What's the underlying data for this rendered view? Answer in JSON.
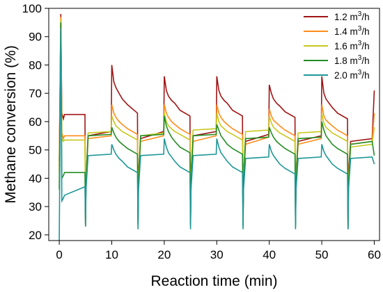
{
  "chart_data": {
    "type": "line",
    "xlabel": "Reaction time (min)",
    "ylabel": "Methane conversion (%)",
    "xlim": [
      -2,
      61
    ],
    "ylim": [
      18,
      100
    ],
    "xticks": [
      0,
      10,
      20,
      30,
      40,
      50,
      60
    ],
    "yticks": [
      20,
      30,
      40,
      50,
      60,
      70,
      80,
      90,
      100
    ],
    "grid": false,
    "legend_position": "top-right",
    "series": [
      {
        "name": "1.2 m³/h",
        "name_base": "1.2 m",
        "name_sup": "3",
        "name_tail": "/h",
        "color": "#a01414",
        "x": [
          0,
          0.3,
          0.5,
          0.8,
          1,
          4.9,
          5,
          5.1,
          5.5,
          9.9,
          10,
          10.4,
          10.8,
          11.4,
          12,
          13,
          14.9,
          15,
          15.1,
          15.5,
          19.9,
          20,
          20.4,
          20.8,
          21.4,
          22,
          23,
          24.9,
          25,
          25.1,
          25.5,
          29.9,
          30,
          30.4,
          30.8,
          31.4,
          32,
          33,
          34.9,
          35,
          35.1,
          35.5,
          39.9,
          40,
          40.4,
          40.8,
          41.4,
          42,
          43,
          44.9,
          45,
          45.1,
          45.5,
          49.9,
          50,
          50.4,
          50.8,
          51.4,
          52,
          53,
          54.9,
          55,
          55.1,
          55.5,
          59.6,
          60
        ],
        "y": [
          46,
          98,
          63,
          61,
          62.5,
          62.5,
          23,
          40,
          55,
          56.5,
          80,
          74,
          72,
          70,
          68,
          66,
          63,
          24,
          42,
          54,
          56.5,
          76,
          71,
          69,
          67.5,
          66.5,
          64,
          62,
          24,
          42,
          55,
          56.5,
          76,
          71,
          69,
          67.5,
          66.5,
          64,
          62,
          24,
          42,
          53,
          55.5,
          73,
          70,
          68,
          66.5,
          65.5,
          63.5,
          61.5,
          24,
          42,
          53,
          55,
          76,
          70,
          68,
          66.5,
          65,
          63,
          61,
          23,
          42,
          53,
          54,
          71
        ]
      },
      {
        "name": "1.4 m³/h",
        "name_base": "1.4 m",
        "name_sup": "3",
        "name_tail": "/h",
        "color": "#ff8c1a",
        "x": [
          0,
          0.3,
          0.5,
          0.8,
          1,
          4.9,
          5,
          5.1,
          5.5,
          9.9,
          10,
          10.4,
          10.8,
          11.4,
          12,
          13,
          14.9,
          15,
          15.1,
          15.5,
          19.9,
          20,
          20.4,
          20.8,
          21.4,
          22,
          23,
          24.9,
          25,
          25.1,
          25.5,
          29.9,
          30,
          30.4,
          30.8,
          31.4,
          32,
          33,
          34.9,
          35,
          35.1,
          35.5,
          39.9,
          40,
          40.4,
          40.8,
          41.4,
          42,
          43,
          44.9,
          45,
          45.1,
          45.5,
          49.9,
          50,
          50.4,
          50.8,
          51.4,
          52,
          53,
          54.9,
          55,
          55.1,
          55.5,
          59.6,
          60
        ],
        "y": [
          44,
          97,
          56,
          54,
          55,
          55,
          23,
          40,
          54,
          55,
          66,
          63,
          61.5,
          60,
          59,
          57.5,
          55.5,
          24,
          40,
          53,
          55,
          66,
          63,
          61.5,
          60,
          59,
          57.5,
          55.5,
          24,
          40,
          53,
          55,
          66,
          63,
          61.5,
          60,
          59,
          57.5,
          55.5,
          24,
          40,
          52,
          54.5,
          64.5,
          62,
          60.5,
          59.5,
          58.5,
          57,
          55,
          24,
          40,
          52,
          54,
          66,
          62,
          60.5,
          59.5,
          58.5,
          57,
          55,
          23,
          40,
          52,
          53,
          63
        ]
      },
      {
        "name": "1.6 m³/h",
        "name_base": "1.6 m",
        "name_sup": "3",
        "name_tail": "/h",
        "color": "#c8c81e",
        "x": [
          0,
          0.3,
          0.5,
          0.8,
          1,
          4.9,
          5,
          5.1,
          5.5,
          9.9,
          10,
          10.4,
          10.8,
          11.4,
          12,
          13,
          14.9,
          15,
          15.1,
          15.5,
          19.9,
          20,
          20.4,
          20.8,
          21.4,
          22,
          23,
          24.9,
          25,
          25.1,
          25.5,
          29.9,
          30,
          30.4,
          30.8,
          31.4,
          32,
          33,
          34.9,
          35,
          35.1,
          35.5,
          39.9,
          40,
          40.4,
          40.8,
          41.4,
          42,
          43,
          44.9,
          45,
          45.1,
          45.5,
          49.9,
          50,
          50.4,
          50.8,
          51.4,
          52,
          53,
          54.9,
          55,
          55.1,
          55.5,
          59.6,
          60
        ],
        "y": [
          42,
          96,
          54,
          53,
          53.5,
          53.5,
          23,
          40,
          56,
          56.5,
          62,
          60,
          58.5,
          57.5,
          56.5,
          55.5,
          53.5,
          24,
          40,
          55,
          56,
          63,
          60,
          58.5,
          57.5,
          56.5,
          55.5,
          53.5,
          24,
          40,
          57,
          57.5,
          63,
          60,
          58.5,
          57.5,
          56.5,
          55.5,
          53.5,
          24,
          40,
          56.5,
          57,
          62,
          59.5,
          58,
          57,
          56,
          55,
          53,
          24,
          40,
          56,
          56.5,
          63,
          59.5,
          58,
          57,
          56,
          55,
          53,
          23,
          40,
          51,
          52,
          58
        ]
      },
      {
        "name": "1.8 m³/h",
        "name_base": "1.8 m",
        "name_sup": "3",
        "name_tail": "/h",
        "color": "#238c23",
        "x": [
          0,
          0.3,
          0.5,
          0.8,
          1,
          4.9,
          5,
          5.1,
          5.5,
          9.9,
          10,
          10.4,
          10.8,
          11.4,
          12,
          13,
          14.9,
          15,
          15.1,
          15.5,
          19.9,
          20,
          20.4,
          20.8,
          21.4,
          22,
          23,
          24.9,
          25,
          25.1,
          25.5,
          29.9,
          30,
          30.4,
          30.8,
          31.4,
          32,
          33,
          34.9,
          35,
          35.1,
          35.5,
          39.9,
          40,
          40.4,
          40.8,
          41.4,
          42,
          43,
          44.9,
          45,
          45.1,
          45.5,
          49.9,
          50,
          50.4,
          50.8,
          51.4,
          52,
          53,
          54.9,
          55,
          55.1,
          55.5,
          59.6,
          60
        ],
        "y": [
          36,
          95,
          40,
          41,
          42,
          42,
          23,
          38,
          55,
          55.5,
          58,
          56,
          54.5,
          53,
          52,
          50.5,
          48.5,
          23,
          38,
          55,
          55.5,
          62,
          58.5,
          56.5,
          54.5,
          53,
          51,
          49,
          23,
          38,
          55,
          55.5,
          59,
          57,
          55,
          53.5,
          52,
          50.5,
          48.5,
          23,
          38,
          54,
          54.5,
          58,
          56,
          54.5,
          53,
          52,
          50.5,
          48.5,
          23,
          38,
          54,
          54.5,
          60,
          57,
          55,
          53.5,
          52,
          50.5,
          48.5,
          22,
          38,
          52,
          53,
          48
        ]
      },
      {
        "name": "2.0 m³/h",
        "name_base": "2.0 m",
        "name_sup": "3",
        "name_tail": "/h",
        "color": "#1e9696",
        "x": [
          0,
          0.3,
          0.5,
          0.8,
          1,
          4.9,
          5,
          5.1,
          5.5,
          9.9,
          10,
          10.4,
          10.8,
          11.4,
          12,
          13,
          14.9,
          15,
          15.1,
          15.5,
          19.9,
          20,
          20.4,
          20.8,
          21.4,
          22,
          23,
          24.9,
          25,
          25.1,
          25.5,
          29.9,
          30,
          30.4,
          30.8,
          31.4,
          32,
          33,
          34.9,
          35,
          35.1,
          35.5,
          39.9,
          40,
          40.4,
          40.8,
          41.4,
          42,
          43,
          44.9,
          45,
          45.1,
          45.5,
          49.9,
          50,
          50.4,
          50.8,
          51.4,
          52,
          53,
          54.9,
          55,
          55.1,
          55.5,
          59.6,
          60
        ],
        "y": [
          18,
          93,
          32,
          33,
          34,
          37,
          23,
          36,
          48,
          48.5,
          52,
          50,
          48.5,
          47,
          46,
          44,
          42,
          22,
          36,
          48,
          48.5,
          54,
          51,
          49,
          47.5,
          46,
          44,
          42,
          22,
          36,
          48,
          48.5,
          54,
          51,
          49,
          47.5,
          46,
          44,
          42,
          22,
          36,
          47,
          47.5,
          52,
          49.5,
          48,
          46.5,
          45,
          43.5,
          41.5,
          22,
          36,
          47,
          47.5,
          52,
          49.5,
          48,
          46.5,
          45,
          43.5,
          41.5,
          22,
          36,
          47,
          47.5,
          45
        ]
      }
    ]
  }
}
